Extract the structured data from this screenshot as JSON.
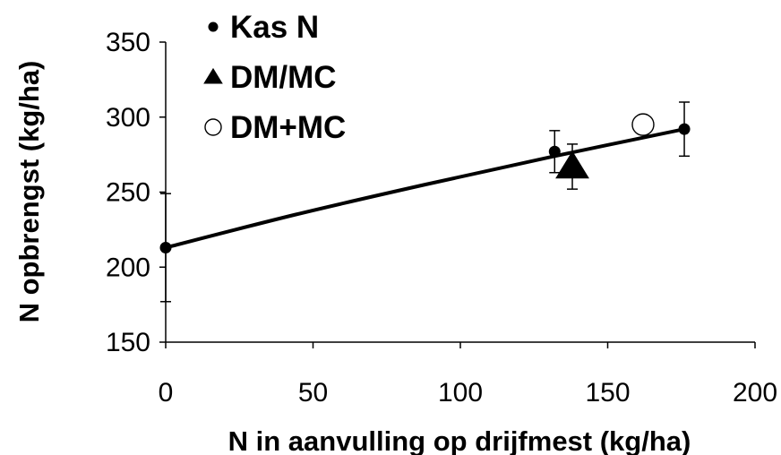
{
  "chart_data": {
    "type": "scatter",
    "title": "",
    "xlabel": "N in aanvulling op drijfmest (kg/ha)",
    "ylabel": "N opbrengst (kg/ha)",
    "xlim": [
      0,
      200
    ],
    "ylim": [
      150,
      350
    ],
    "xticks": [
      0,
      50,
      100,
      150,
      200
    ],
    "yticks": [
      150,
      200,
      250,
      300,
      350
    ],
    "grid": false,
    "legend_position": "top-left",
    "series": [
      {
        "name": "Kas N",
        "marker": "filled-circle",
        "points": [
          {
            "x": 0,
            "y": 213,
            "err": 36
          },
          {
            "x": 132,
            "y": 277,
            "err": 14
          },
          {
            "x": 176,
            "y": 292,
            "err": 18
          }
        ]
      },
      {
        "name": "DM/MC",
        "marker": "filled-triangle",
        "points": [
          {
            "x": 138,
            "y": 267,
            "err": 15
          }
        ]
      },
      {
        "name": "DM+MC",
        "marker": "open-circle",
        "points": [
          {
            "x": 162,
            "y": 295,
            "err": 5
          }
        ]
      }
    ],
    "fit_curve": {
      "points": [
        {
          "x": 0,
          "y": 213
        },
        {
          "x": 44,
          "y": 235
        },
        {
          "x": 88,
          "y": 255
        },
        {
          "x": 132,
          "y": 274
        },
        {
          "x": 176,
          "y": 292
        }
      ]
    }
  }
}
